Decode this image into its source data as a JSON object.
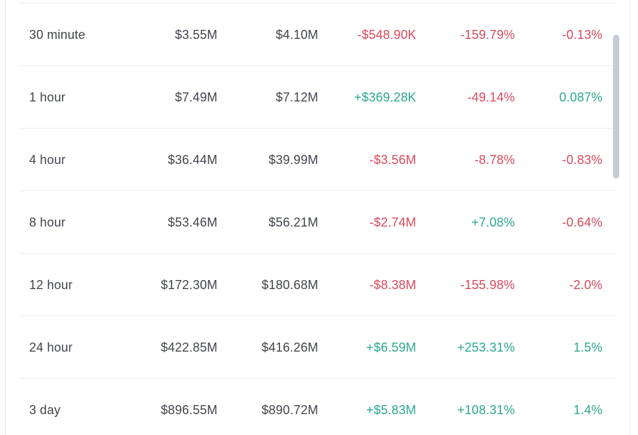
{
  "colors": {
    "positive": "#2ba78d",
    "negative": "#d9495b",
    "neutral_text": "#41444d",
    "separator": "#ededee",
    "panel_border": "#e2e3e6",
    "panel_border_faint": "#ebecee",
    "scrollbar_thumb": "#c6cbd4",
    "background": "#ffffff"
  },
  "table": {
    "rows": [
      {
        "period": "30 minute",
        "value1": "$3.55M",
        "value2": "$4.10M",
        "delta": "-$548.90K",
        "delta_tone": "negative",
        "percent1": "-159.79%",
        "percent1_tone": "negative",
        "percent2": "-0.13%",
        "percent2_tone": "negative"
      },
      {
        "period": "1 hour",
        "value1": "$7.49M",
        "value2": "$7.12M",
        "delta": "+$369.28K",
        "delta_tone": "positive",
        "percent1": "-49.14%",
        "percent1_tone": "negative",
        "percent2": "0.087%",
        "percent2_tone": "positive"
      },
      {
        "period": "4 hour",
        "value1": "$36.44M",
        "value2": "$39.99M",
        "delta": "-$3.56M",
        "delta_tone": "negative",
        "percent1": "-8.78%",
        "percent1_tone": "negative",
        "percent2": "-0.83%",
        "percent2_tone": "negative"
      },
      {
        "period": "8 hour",
        "value1": "$53.46M",
        "value2": "$56.21M",
        "delta": "-$2.74M",
        "delta_tone": "negative",
        "percent1": "+7.08%",
        "percent1_tone": "positive",
        "percent2": "-0.64%",
        "percent2_tone": "negative"
      },
      {
        "period": "12 hour",
        "value1": "$172.30M",
        "value2": "$180.68M",
        "delta": "-$8.38M",
        "delta_tone": "negative",
        "percent1": "-155.98%",
        "percent1_tone": "negative",
        "percent2": "-2.0%",
        "percent2_tone": "negative"
      },
      {
        "period": "24 hour",
        "value1": "$422.85M",
        "value2": "$416.26M",
        "delta": "+$6.59M",
        "delta_tone": "positive",
        "percent1": "+253.31%",
        "percent1_tone": "positive",
        "percent2": "1.5%",
        "percent2_tone": "positive"
      },
      {
        "period": "3 day",
        "value1": "$896.55M",
        "value2": "$890.72M",
        "delta": "+$5.83M",
        "delta_tone": "positive",
        "percent1": "+108.31%",
        "percent1_tone": "positive",
        "percent2": "1.4%",
        "percent2_tone": "positive"
      }
    ]
  }
}
